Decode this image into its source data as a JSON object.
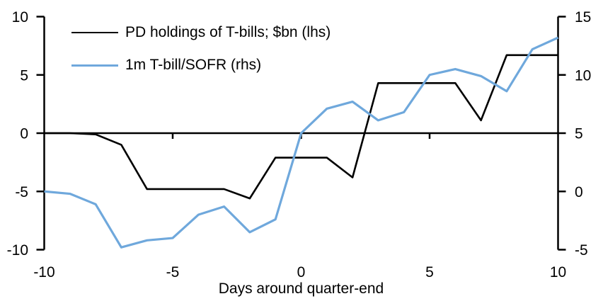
{
  "chart_data": {
    "type": "line",
    "xlabel": "Days around quarter-end",
    "x": [
      -10,
      -9,
      -8,
      -7,
      -6,
      -5,
      -4,
      -3,
      -2,
      -1,
      0,
      1,
      2,
      3,
      4,
      5,
      6,
      7,
      8,
      9,
      10
    ],
    "series": [
      {
        "name": "PD holdings of T-bills; $bn (lhs)",
        "axis": "left",
        "color": "#000000",
        "stroke_width": 2.6,
        "values": [
          0,
          0,
          -0.1,
          -1.0,
          -4.8,
          -4.8,
          -4.8,
          -4.8,
          -5.6,
          -2.1,
          -2.1,
          -2.1,
          -3.8,
          4.3,
          4.3,
          4.3,
          4.3,
          1.1,
          6.7,
          6.7,
          6.7
        ]
      },
      {
        "name": "1m T-bill/SOFR (rhs)",
        "axis": "right",
        "color": "#6FA8DC",
        "stroke_width": 3.2,
        "values": [
          0.0,
          -0.2,
          -1.1,
          -4.8,
          -4.2,
          -4.0,
          -2.0,
          -1.3,
          -3.5,
          -2.4,
          5.0,
          7.1,
          7.7,
          6.1,
          6.8,
          10.0,
          10.5,
          9.9,
          8.6,
          12.2,
          13.2
        ]
      }
    ],
    "left_axis": {
      "range": [
        -10,
        10
      ],
      "tick_values": [
        10,
        5,
        0,
        -5,
        -10
      ],
      "tick_labels": [
        "10",
        "5",
        "0",
        "-5",
        "-10"
      ]
    },
    "right_axis": {
      "range": [
        -5,
        15
      ],
      "tick_values": [
        15,
        10,
        5,
        0,
        -5
      ],
      "tick_labels": [
        "15",
        "10",
        "5",
        "0",
        "-5"
      ]
    },
    "x_axis": {
      "range": [
        -10,
        10
      ],
      "tick_values": [
        -5,
        0,
        5
      ],
      "label_values": [
        -10,
        -5,
        0,
        5,
        10
      ],
      "labels": [
        "-10",
        "-5",
        "0",
        "5",
        "10"
      ]
    },
    "grid": false,
    "legend_position": "top-left-inside",
    "axis_color": "#000000",
    "text_color": "#000000"
  },
  "legend": {
    "items": [
      {
        "label": "PD holdings of T-bills; $bn (lhs)"
      },
      {
        "label": "1m T-bill/SOFR (rhs)"
      }
    ]
  }
}
